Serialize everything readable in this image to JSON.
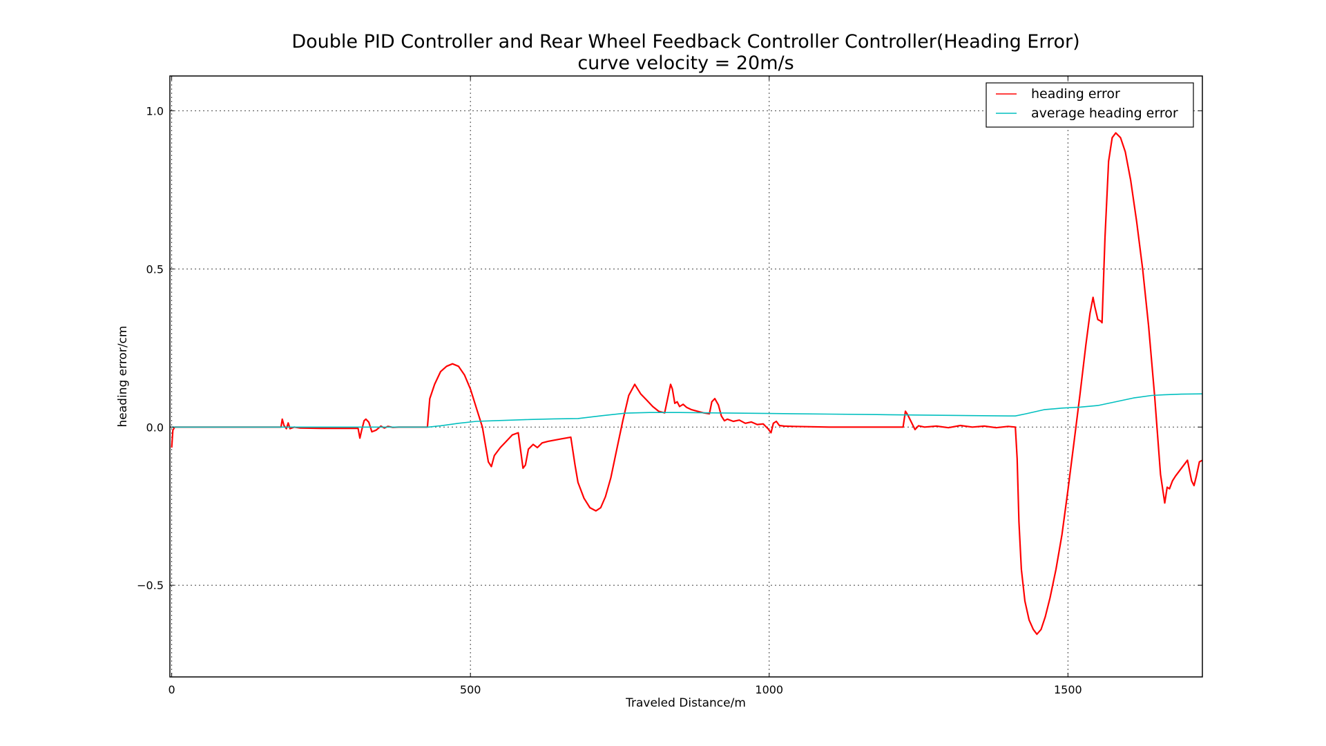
{
  "chart_data": {
    "type": "line",
    "title": "Double PID Controller and Rear Wheel Feedback Controller Controller(Heading Error)",
    "subtitle": "curve velocity = 20m/s",
    "xlabel": "Traveled Distance/m",
    "ylabel": "heading error/cm",
    "xlim": [
      -3,
      1725
    ],
    "ylim": [
      -0.79,
      1.11
    ],
    "xticks": [
      0,
      500,
      1000,
      1500
    ],
    "xtick_labels": [
      "0",
      "500",
      "1000",
      "1500"
    ],
    "yticks": [
      -0.5,
      0.0,
      0.5,
      1.0
    ],
    "ytick_labels": [
      "−0.5",
      "0.0",
      "0.5",
      "1.0"
    ],
    "grid": true,
    "legend_position": "top-right",
    "series": [
      {
        "name": "heading error",
        "color": "#ff0000",
        "x": [
          0,
          2,
          5,
          20,
          100,
          183,
          185,
          188,
          192,
          195,
          198,
          205,
          215,
          250,
          300,
          312,
          315,
          318,
          322,
          325,
          330,
          335,
          342,
          350,
          356,
          362,
          370,
          380,
          420,
          428,
          432,
          440,
          450,
          460,
          470,
          480,
          490,
          500,
          510,
          520,
          530,
          535,
          540,
          550,
          560,
          570,
          580,
          583,
          588,
          592,
          597,
          605,
          612,
          620,
          630,
          650,
          668,
          675,
          680,
          690,
          700,
          710,
          718,
          726,
          735,
          745,
          755,
          765,
          775,
          780,
          785,
          795,
          805,
          815,
          825,
          830,
          835,
          838,
          842,
          846,
          850,
          856,
          862,
          870,
          880,
          890,
          900,
          904,
          909,
          915,
          920,
          925,
          930,
          940,
          950,
          960,
          970,
          980,
          990,
          998,
          1003,
          1007,
          1012,
          1017,
          1025,
          1040,
          1100,
          1224,
          1228,
          1232,
          1238,
          1244,
          1250,
          1260,
          1280,
          1300,
          1320,
          1340,
          1360,
          1380,
          1400,
          1412,
          1415,
          1418,
          1422,
          1428,
          1435,
          1442,
          1448,
          1455,
          1462,
          1470,
          1480,
          1490,
          1500,
          1510,
          1520,
          1530,
          1537,
          1542,
          1545,
          1550,
          1555,
          1557,
          1562,
          1568,
          1574,
          1580,
          1588,
          1596,
          1605,
          1615,
          1625,
          1635,
          1645,
          1655,
          1662,
          1666,
          1670,
          1675,
          1680,
          1690,
          1700,
          1707,
          1711,
          1715,
          1720,
          1725
        ],
        "y": [
          -0.065,
          -0.01,
          0.0,
          0.0,
          0.0,
          0.0,
          0.025,
          0.005,
          -0.005,
          0.013,
          -0.005,
          0.0,
          -0.003,
          -0.004,
          -0.004,
          -0.004,
          -0.035,
          -0.01,
          0.02,
          0.025,
          0.015,
          -0.015,
          -0.01,
          0.003,
          -0.003,
          0.002,
          -0.001,
          0.0,
          0.0,
          0.0,
          0.09,
          0.135,
          0.175,
          0.192,
          0.2,
          0.192,
          0.165,
          0.12,
          0.06,
          0.0,
          -0.11,
          -0.125,
          -0.09,
          -0.065,
          -0.045,
          -0.025,
          -0.018,
          -0.06,
          -0.13,
          -0.12,
          -0.07,
          -0.055,
          -0.065,
          -0.05,
          -0.045,
          -0.038,
          -0.032,
          -0.12,
          -0.175,
          -0.225,
          -0.255,
          -0.265,
          -0.255,
          -0.22,
          -0.16,
          -0.07,
          0.02,
          0.1,
          0.135,
          0.12,
          0.105,
          0.085,
          0.065,
          0.05,
          0.045,
          0.09,
          0.135,
          0.12,
          0.075,
          0.08,
          0.065,
          0.072,
          0.062,
          0.055,
          0.05,
          0.045,
          0.042,
          0.08,
          0.09,
          0.07,
          0.035,
          0.02,
          0.025,
          0.018,
          0.022,
          0.012,
          0.016,
          0.008,
          0.01,
          -0.005,
          -0.018,
          0.012,
          0.018,
          0.005,
          0.003,
          0.002,
          0.0,
          0.0,
          0.05,
          0.038,
          0.015,
          -0.008,
          0.004,
          0.0,
          0.003,
          -0.002,
          0.005,
          0.0,
          0.003,
          -0.002,
          0.002,
          0.0,
          -0.1,
          -0.3,
          -0.45,
          -0.55,
          -0.61,
          -0.64,
          -0.655,
          -0.64,
          -0.6,
          -0.54,
          -0.45,
          -0.34,
          -0.2,
          -0.05,
          0.1,
          0.26,
          0.36,
          0.41,
          0.38,
          0.34,
          0.335,
          0.33,
          0.6,
          0.84,
          0.915,
          0.93,
          0.915,
          0.87,
          0.78,
          0.65,
          0.5,
          0.32,
          0.1,
          -0.15,
          -0.24,
          -0.19,
          -0.195,
          -0.17,
          -0.155,
          -0.13,
          -0.105,
          -0.17,
          -0.185,
          -0.155,
          -0.11,
          -0.105
        ]
      },
      {
        "name": "average heading error",
        "color": "#00bfbf",
        "x": [
          0,
          200,
          300,
          420,
          430,
          450,
          480,
          510,
          540,
          570,
          600,
          640,
          680,
          720,
          760,
          800,
          850,
          900,
          1000,
          1100,
          1200,
          1300,
          1400,
          1412,
          1430,
          1460,
          1490,
          1520,
          1550,
          1580,
          1610,
          1640,
          1660,
          1690,
          1725
        ],
        "y": [
          0.0,
          0.0,
          0.0,
          0.0,
          0.0,
          0.004,
          0.012,
          0.018,
          0.02,
          0.022,
          0.024,
          0.026,
          0.027,
          0.036,
          0.044,
          0.046,
          0.046,
          0.045,
          0.043,
          0.041,
          0.039,
          0.037,
          0.035,
          0.035,
          0.042,
          0.055,
          0.06,
          0.063,
          0.068,
          0.08,
          0.092,
          0.1,
          0.102,
          0.104,
          0.105
        ]
      }
    ]
  }
}
